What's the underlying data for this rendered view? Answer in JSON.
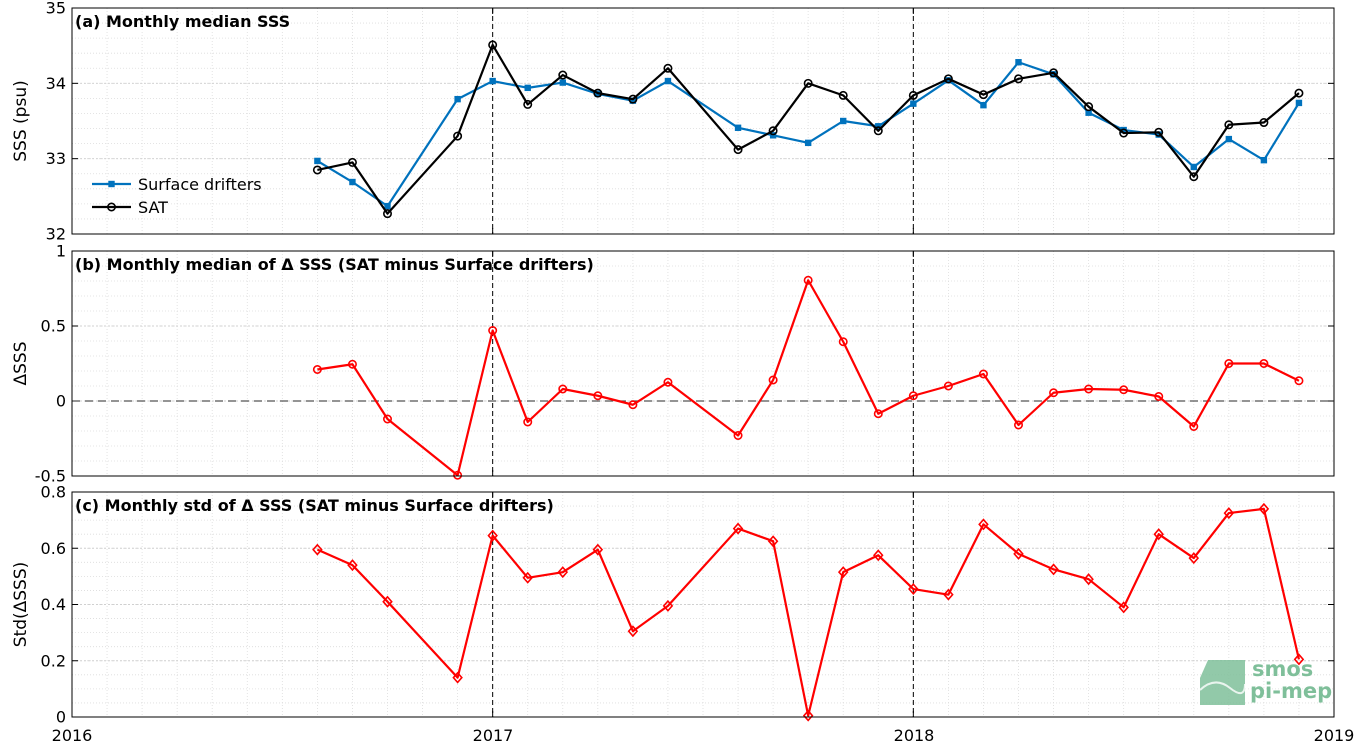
{
  "brand": {
    "logo_line1": "smos",
    "logo_line2": "pi-mep",
    "logo_color": "#7fbf9a"
  },
  "colors": {
    "drifters": "#0072bd",
    "sat": "#000000",
    "delta": "#ff0000"
  },
  "x_axis": {
    "range": [
      "2016-01-01",
      "2019-01-01"
    ],
    "tick_labels": [
      "2016",
      "2017",
      "2018",
      "2019"
    ],
    "dashed_year_lines": [
      "2017",
      "2018"
    ],
    "minor_ticks": "monthly"
  },
  "chart_data": [
    {
      "type": "line",
      "title": "(a) Monthly median SSS",
      "ylabel": "SSS (psu)",
      "ylim": [
        32,
        35
      ],
      "yticks": [
        "32",
        "33",
        "34",
        "35"
      ],
      "grid": true,
      "legend": "left",
      "x": [
        "2016-08",
        "2016-09",
        "2016-10",
        "2016-12",
        "2017-01",
        "2017-02",
        "2017-03",
        "2017-04",
        "2017-05",
        "2017-06",
        "2017-08",
        "2017-09",
        "2017-10",
        "2017-11",
        "2017-12",
        "2018-01",
        "2018-02",
        "2018-03",
        "2018-04",
        "2018-05",
        "2018-06",
        "2018-07",
        "2018-08",
        "2018-09",
        "2018-10",
        "2018-11",
        "2018-12"
      ],
      "series": [
        {
          "name": "Surface drifters",
          "marker": "square",
          "values": [
            32.97,
            32.69,
            32.37,
            33.79,
            34.03,
            33.94,
            34.01,
            33.86,
            33.77,
            34.03,
            33.41,
            33.31,
            33.21,
            33.5,
            33.43,
            33.73,
            34.04,
            33.71,
            34.28,
            34.12,
            33.61,
            33.38,
            33.32,
            32.89,
            33.26,
            32.98,
            33.74
          ]
        },
        {
          "name": "SAT",
          "marker": "circle",
          "values": [
            32.85,
            32.95,
            32.27,
            33.3,
            34.51,
            33.72,
            34.11,
            33.87,
            33.79,
            34.2,
            33.12,
            33.37,
            34.0,
            33.84,
            33.37,
            33.84,
            34.06,
            33.85,
            34.06,
            34.14,
            33.69,
            33.34,
            33.35,
            32.76,
            33.45,
            33.48,
            33.87
          ]
        }
      ]
    },
    {
      "type": "line",
      "title": "(b) Monthly median of Δ SSS (SAT minus Surface drifters)",
      "ylabel": "ΔSSS",
      "ylim": [
        -0.5,
        1
      ],
      "yticks": [
        "-0.5",
        "0",
        "0.5",
        "1"
      ],
      "grid": true,
      "reference_line": 0,
      "x": [
        "2016-08",
        "2016-09",
        "2016-10",
        "2016-12",
        "2017-01",
        "2017-02",
        "2017-03",
        "2017-04",
        "2017-05",
        "2017-06",
        "2017-08",
        "2017-09",
        "2017-10",
        "2017-11",
        "2017-12",
        "2018-01",
        "2018-02",
        "2018-03",
        "2018-04",
        "2018-05",
        "2018-06",
        "2018-07",
        "2018-08",
        "2018-09",
        "2018-10",
        "2018-11",
        "2018-12"
      ],
      "series": [
        {
          "marker": "circle",
          "values": [
            0.21,
            0.245,
            -0.12,
            -0.495,
            0.47,
            -0.14,
            0.08,
            0.035,
            -0.025,
            0.125,
            -0.23,
            0.14,
            0.805,
            0.395,
            -0.085,
            0.035,
            0.1,
            0.18,
            -0.16,
            0.055,
            0.08,
            0.075,
            0.03,
            -0.17,
            0.25,
            0.25,
            0.135
          ]
        }
      ]
    },
    {
      "type": "line",
      "title": "(c) Monthly std of Δ SSS (SAT minus Surface drifters)",
      "ylabel": "Std(ΔSSS)",
      "ylim": [
        0,
        0.8
      ],
      "yticks": [
        "0",
        "0.2",
        "0.4",
        "0.6",
        "0.8"
      ],
      "grid": true,
      "x": [
        "2016-08",
        "2016-09",
        "2016-10",
        "2016-12",
        "2017-01",
        "2017-02",
        "2017-03",
        "2017-04",
        "2017-05",
        "2017-06",
        "2017-08",
        "2017-09",
        "2017-10",
        "2017-11",
        "2017-12",
        "2018-01",
        "2018-02",
        "2018-03",
        "2018-04",
        "2018-05",
        "2018-06",
        "2018-07",
        "2018-08",
        "2018-09",
        "2018-10",
        "2018-11",
        "2018-12"
      ],
      "series": [
        {
          "marker": "diamond",
          "values": [
            0.595,
            0.54,
            0.41,
            0.14,
            0.645,
            0.495,
            0.515,
            0.595,
            0.305,
            0.395,
            0.67,
            0.625,
            0.005,
            0.515,
            0.575,
            0.455,
            0.435,
            0.685,
            0.58,
            0.525,
            0.49,
            0.39,
            0.65,
            0.565,
            0.725,
            0.74,
            0.205
          ]
        }
      ]
    }
  ]
}
